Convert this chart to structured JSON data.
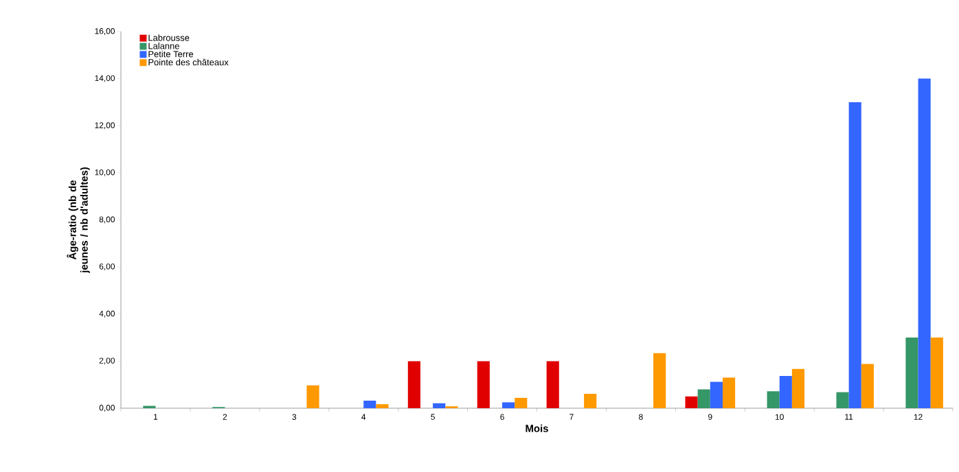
{
  "chart_data": {
    "type": "bar",
    "xlabel": "Mois",
    "ylabel": "Âge-ratio (nb de jeunes / nb d'adultes)",
    "categories": [
      "1",
      "2",
      "3",
      "4",
      "5",
      "6",
      "7",
      "8",
      "9",
      "10",
      "11",
      "12"
    ],
    "series": [
      {
        "name": "Labrousse",
        "color": "#e00000",
        "values": [
          null,
          null,
          null,
          null,
          2.0,
          2.0,
          2.0,
          null,
          0.5,
          null,
          null,
          null
        ]
      },
      {
        "name": "Lalanne",
        "color": "#359668",
        "values": [
          0.1,
          0.05,
          null,
          null,
          null,
          null,
          null,
          null,
          0.8,
          0.72,
          0.68,
          3.0
        ]
      },
      {
        "name": "Petite Terre",
        "color": "#3366ff",
        "values": [
          null,
          null,
          null,
          0.32,
          0.21,
          0.25,
          null,
          null,
          1.12,
          1.37,
          13.0,
          14.0
        ]
      },
      {
        "name": "Pointe des châteaux",
        "color": "#ff9900",
        "values": [
          null,
          null,
          0.97,
          0.17,
          0.08,
          0.44,
          0.61,
          2.34,
          1.3,
          1.67,
          1.88,
          3.0
        ]
      }
    ],
    "ylim": [
      0,
      16
    ],
    "yticks": [
      {
        "value": 0,
        "label": "0,00"
      },
      {
        "value": 2,
        "label": "2,00"
      },
      {
        "value": 4,
        "label": "4,00"
      },
      {
        "value": 6,
        "label": "6,00"
      },
      {
        "value": 8,
        "label": "8,00"
      },
      {
        "value": 10,
        "label": "10,00"
      },
      {
        "value": 12,
        "label": "12,00"
      },
      {
        "value": 14,
        "label": "14,00"
      },
      {
        "value": 16,
        "label": "16,00"
      }
    ],
    "grid": false,
    "legend": "top left"
  }
}
